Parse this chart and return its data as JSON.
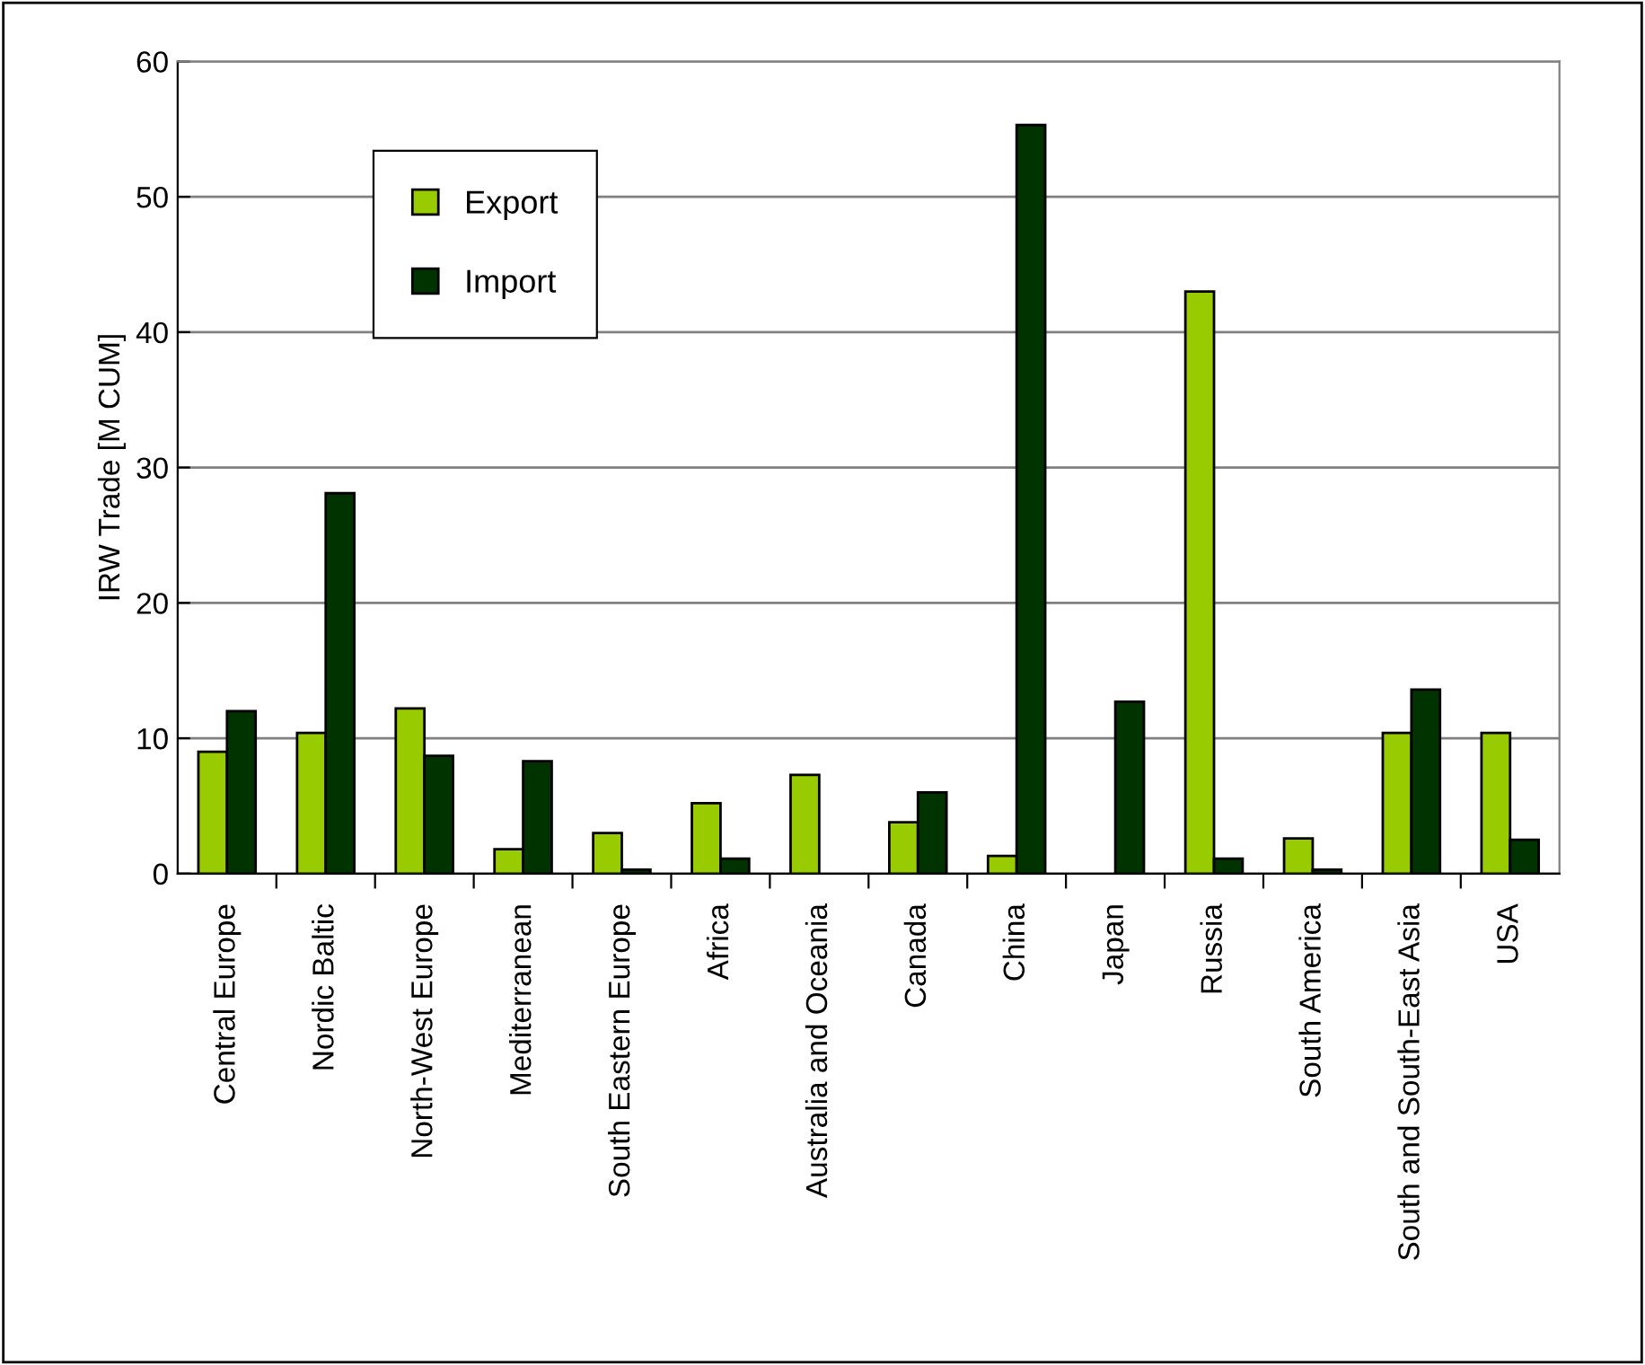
{
  "chart_data": {
    "type": "bar",
    "ylabel": "IRW Trade [M CUM]",
    "categories": [
      "Central Europe",
      "Nordic Baltic",
      "North-West Europe",
      "Mediterranean",
      "South Eastern Europe",
      "Africa",
      "Australia and Oceania",
      "Canada",
      "China",
      "Japan",
      "Russia",
      "South America",
      "South and South-East Asia",
      "USA"
    ],
    "series": [
      {
        "name": "Export",
        "color": "#99cc00",
        "values": [
          9.0,
          10.4,
          12.2,
          1.8,
          3.0,
          5.2,
          7.3,
          3.8,
          1.3,
          null,
          43.0,
          2.6,
          10.4,
          10.4
        ]
      },
      {
        "name": "Import",
        "color": "#003300",
        "values": [
          12.0,
          28.1,
          8.7,
          8.3,
          0.3,
          1.1,
          null,
          6.0,
          55.3,
          12.7,
          1.1,
          0.3,
          13.6,
          2.5
        ]
      }
    ],
    "ylim": [
      0,
      60
    ],
    "yticks": [
      0,
      10,
      20,
      30,
      40,
      50,
      60
    ],
    "grid": "y",
    "legend": "top left"
  }
}
